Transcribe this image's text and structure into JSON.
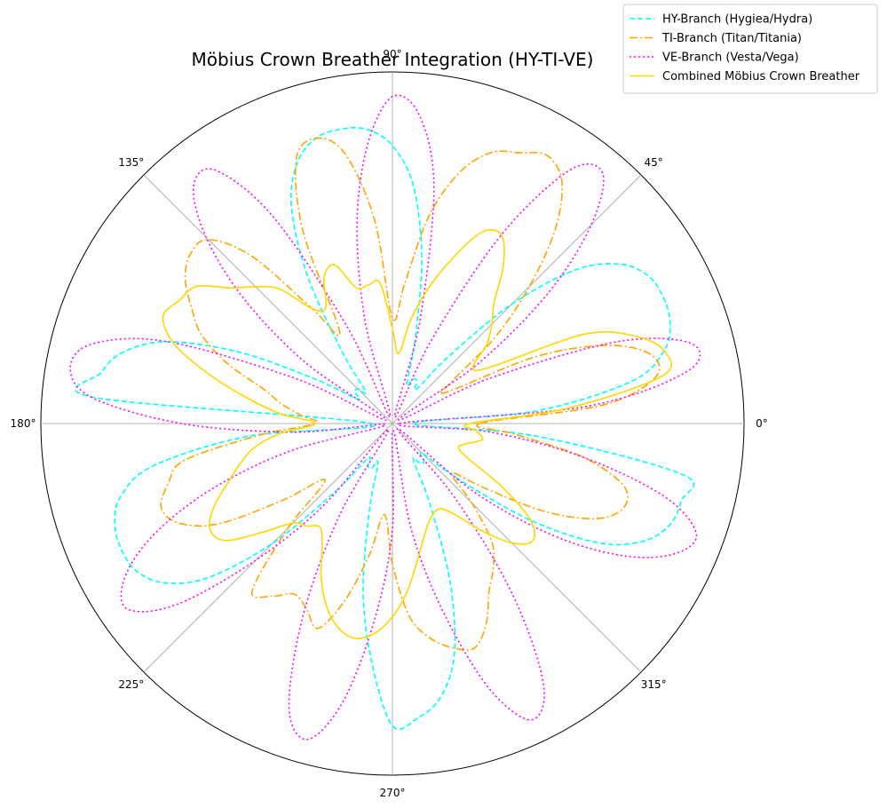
{
  "chart_data": {
    "type": "line",
    "projection": "polar",
    "title": "Möbius Crown Breather Integration (HY-TI-VE)",
    "angle_tick_labels": [
      "0°",
      "45°",
      "90°",
      "135°",
      "180°",
      "225°",
      "270°",
      "315°"
    ],
    "angle_ticks_deg": [
      0,
      45,
      90,
      135,
      180,
      225,
      270,
      315
    ],
    "radial_tick_labels": [],
    "rlim": [
      0,
      1.0
    ],
    "grid": true,
    "legend_position": "top-right",
    "theta_deg": [
      0,
      5,
      10,
      15,
      20,
      25,
      30,
      35,
      40,
      45,
      50,
      55,
      60,
      65,
      70,
      75,
      80,
      85,
      90,
      95,
      100,
      105,
      110,
      115,
      120,
      125,
      130,
      135,
      140,
      145,
      150,
      155,
      160,
      165,
      170,
      175,
      180,
      185,
      190,
      195,
      200,
      205,
      210,
      215,
      220,
      225,
      230,
      235,
      240,
      245,
      250,
      255,
      260,
      265,
      270,
      275,
      280,
      285,
      290,
      295,
      300,
      305,
      310,
      315,
      320,
      325,
      330,
      335,
      340,
      345,
      350,
      355,
      360
    ],
    "series": [
      {
        "name": "HY-Branch (Hygiea/Hydra)",
        "color": "#00ffff",
        "dash": "dashed",
        "values": [
          0.06,
          0.41,
          0.69,
          0.8,
          0.84,
          0.85,
          0.84,
          0.79,
          0.68,
          0.48,
          0.25,
          0.12,
          0.14,
          0.14,
          0.12,
          0.25,
          0.48,
          0.68,
          0.79,
          0.84,
          0.85,
          0.84,
          0.79,
          0.68,
          0.48,
          0.25,
          0.12,
          0.14,
          0.14,
          0.12,
          0.25,
          0.48,
          0.68,
          0.79,
          0.84,
          0.85,
          0.06,
          0.41,
          0.69,
          0.8,
          0.84,
          0.85,
          0.84,
          0.79,
          0.68,
          0.48,
          0.25,
          0.12,
          0.14,
          0.14,
          0.12,
          0.25,
          0.48,
          0.68,
          0.86,
          0.84,
          0.79,
          0.68,
          0.48,
          0.25,
          0.12,
          0.14,
          0.14,
          0.12,
          0.25,
          0.48,
          0.68,
          0.79,
          0.84,
          0.85,
          0.84,
          0.41,
          0.06
        ]
      },
      {
        "name": "TI-Branch (Titan/Titania)",
        "color": "#ffa500",
        "dash": "dashdot",
        "values": [
          0.25,
          0.6,
          0.76,
          0.76,
          0.65,
          0.45,
          0.18,
          0.2,
          0.38,
          0.55,
          0.72,
          0.84,
          0.88,
          0.85,
          0.82,
          0.74,
          0.6,
          0.4,
          0.3,
          0.58,
          0.78,
          0.84,
          0.8,
          0.6,
          0.3,
          0.4,
          0.62,
          0.74,
          0.75,
          0.72,
          0.66,
          0.6,
          0.5,
          0.38,
          0.32,
          0.26,
          0.22,
          0.38,
          0.6,
          0.66,
          0.7,
          0.67,
          0.57,
          0.38,
          0.25,
          0.42,
          0.62,
          0.6,
          0.56,
          0.58,
          0.62,
          0.52,
          0.38,
          0.26,
          0.4,
          0.55,
          0.62,
          0.66,
          0.68,
          0.63,
          0.55,
          0.5,
          0.44,
          0.32,
          0.22,
          0.32,
          0.5,
          0.64,
          0.7,
          0.68,
          0.55,
          0.35,
          0.25
        ]
      },
      {
        "name": "VE-Branch (Vesta/Vega)",
        "color": "#ff00ff",
        "dash": "dotted",
        "values": [
          0.02,
          0.55,
          0.85,
          0.88,
          0.68,
          0.3,
          0.02,
          0.3,
          0.58,
          0.8,
          0.93,
          0.88,
          0.62,
          0.26,
          0.02,
          0.3,
          0.68,
          0.88,
          0.93,
          0.8,
          0.58,
          0.3,
          0.02,
          0.3,
          0.68,
          0.88,
          0.88,
          0.75,
          0.55,
          0.3,
          0.02,
          0.3,
          0.68,
          0.88,
          0.93,
          0.86,
          0.6,
          0.28,
          0.02,
          0.3,
          0.55,
          0.75,
          0.88,
          0.92,
          0.8,
          0.55,
          0.3,
          0.02,
          0.3,
          0.6,
          0.86,
          0.93,
          0.8,
          0.55,
          0.3,
          0.02,
          0.3,
          0.55,
          0.8,
          0.93,
          0.86,
          0.6,
          0.28,
          0.02,
          0.3,
          0.55,
          0.75,
          0.88,
          0.92,
          0.8,
          0.55,
          0.28,
          0.02
        ]
      },
      {
        "name": "Combined Möbius Crown Breather",
        "color": "#ffd700",
        "dash": "solid",
        "values": [
          0.22,
          0.5,
          0.78,
          0.8,
          0.73,
          0.6,
          0.32,
          0.28,
          0.35,
          0.4,
          0.45,
          0.55,
          0.62,
          0.6,
          0.5,
          0.4,
          0.3,
          0.2,
          0.27,
          0.4,
          0.4,
          0.4,
          0.48,
          0.46,
          0.38,
          0.4,
          0.5,
          0.55,
          0.6,
          0.68,
          0.7,
          0.72,
          0.66,
          0.54,
          0.42,
          0.32,
          0.22,
          0.32,
          0.4,
          0.45,
          0.5,
          0.56,
          0.6,
          0.58,
          0.48,
          0.4,
          0.38,
          0.36,
          0.4,
          0.48,
          0.55,
          0.6,
          0.62,
          0.6,
          0.55,
          0.48,
          0.4,
          0.34,
          0.3,
          0.28,
          0.28,
          0.32,
          0.4,
          0.48,
          0.52,
          0.48,
          0.36,
          0.24,
          0.2,
          0.22,
          0.26,
          0.24,
          0.22
        ]
      }
    ]
  }
}
